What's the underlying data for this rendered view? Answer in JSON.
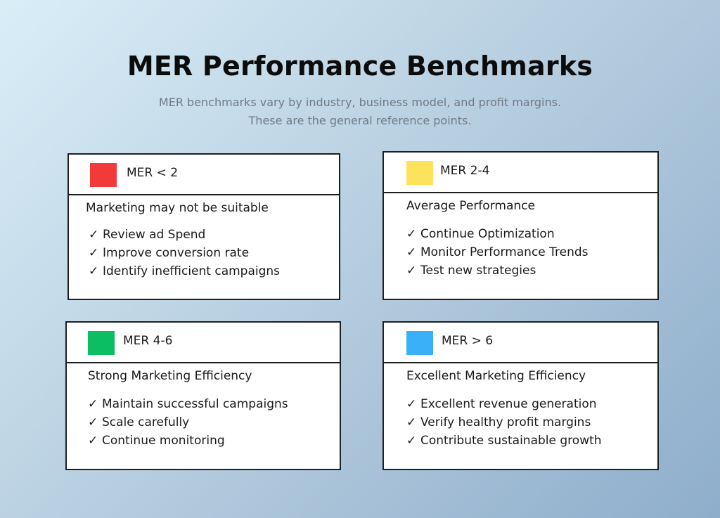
{
  "title": "MER Performance Benchmarks",
  "subtitle": "MER benchmarks vary by industry, business model, and  profit margins. These are the general reference points.",
  "check_glyph": "✓",
  "cards": [
    {
      "range": "MER < 2",
      "color": "#f23a3a",
      "heading": "Marketing may not be suitable",
      "items": [
        "Review ad Spend",
        "Improve conversion rate",
        "Identify inefficient campaigns"
      ]
    },
    {
      "range": "MER 2-4",
      "color": "#fde35b",
      "heading": "Average Performance",
      "items": [
        "Continue Optimization",
        "Monitor Performance Trends",
        "Test new strategies"
      ]
    },
    {
      "range": "MER 4-6",
      "color": "#0bbd63",
      "heading": "Strong Marketing Efficiency",
      "items": [
        "Maintain successful campaigns",
        "Scale carefully",
        "Continue monitoring"
      ]
    },
    {
      "range": "MER > 6",
      "color": "#38b1f9",
      "heading": "Excellent Marketing Efficiency",
      "items": [
        "Excellent revenue generation",
        "Verify healthy profit margins",
        "Contribute sustainable growth"
      ]
    }
  ]
}
